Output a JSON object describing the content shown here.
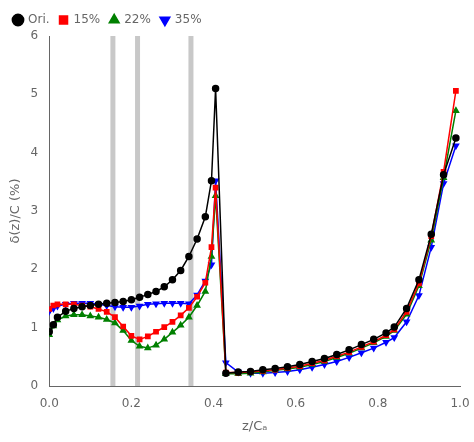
{
  "chart_data": {
    "type": "line",
    "x_label": "z/Cₐ",
    "y_label": "δ(z)/C (%)",
    "x": [
      0.0,
      0.01,
      0.02,
      0.04,
      0.06,
      0.08,
      0.1,
      0.12,
      0.14,
      0.16,
      0.18,
      0.2,
      0.22,
      0.24,
      0.26,
      0.28,
      0.3,
      0.32,
      0.34,
      0.36,
      0.38,
      0.395,
      0.405,
      0.43,
      0.46,
      0.49,
      0.52,
      0.55,
      0.58,
      0.61,
      0.64,
      0.67,
      0.7,
      0.73,
      0.76,
      0.79,
      0.82,
      0.84,
      0.87,
      0.9,
      0.93,
      0.96,
      0.99
    ],
    "series": [
      {
        "name": "Ori.",
        "color": "black",
        "marker": "circle",
        "values": [
          0.93,
          1.05,
          1.18,
          1.28,
          1.33,
          1.36,
          1.38,
          1.4,
          1.42,
          1.43,
          1.45,
          1.48,
          1.52,
          1.57,
          1.62,
          1.7,
          1.82,
          1.98,
          2.22,
          2.52,
          2.9,
          3.52,
          5.1,
          0.22,
          0.24,
          0.25,
          0.28,
          0.3,
          0.33,
          0.37,
          0.42,
          0.47,
          0.54,
          0.62,
          0.71,
          0.8,
          0.91,
          1.01,
          1.33,
          1.82,
          2.6,
          3.62,
          4.25
        ]
      },
      {
        "name": "15%",
        "color": "red",
        "marker": "square",
        "values": [
          1.32,
          1.38,
          1.4,
          1.4,
          1.4,
          1.38,
          1.36,
          1.32,
          1.27,
          1.18,
          1.02,
          0.86,
          0.8,
          0.85,
          0.93,
          1.01,
          1.1,
          1.21,
          1.34,
          1.53,
          1.77,
          2.38,
          3.4,
          0.23,
          0.23,
          0.24,
          0.26,
          0.28,
          0.31,
          0.34,
          0.39,
          0.44,
          0.51,
          0.58,
          0.67,
          0.76,
          0.87,
          0.97,
          1.27,
          1.76,
          2.57,
          3.67,
          5.06
        ]
      },
      {
        "name": "22%",
        "color": "green",
        "marker": "triangle",
        "values": [
          0.88,
          1.03,
          1.13,
          1.2,
          1.22,
          1.22,
          1.2,
          1.18,
          1.14,
          1.08,
          0.95,
          0.78,
          0.68,
          0.65,
          0.7,
          0.8,
          0.92,
          1.04,
          1.18,
          1.38,
          1.62,
          2.22,
          3.26,
          0.21,
          0.21,
          0.22,
          0.24,
          0.27,
          0.29,
          0.32,
          0.37,
          0.42,
          0.49,
          0.56,
          0.65,
          0.74,
          0.85,
          0.95,
          1.23,
          1.72,
          2.5,
          3.57,
          4.72
        ]
      },
      {
        "name": "35%",
        "color": "blue",
        "marker": "triangle_down",
        "values": [
          1.28,
          1.33,
          1.37,
          1.4,
          1.42,
          1.42,
          1.42,
          1.4,
          1.38,
          1.36,
          1.35,
          1.35,
          1.37,
          1.4,
          1.41,
          1.42,
          1.42,
          1.42,
          1.41,
          1.56,
          1.8,
          2.08,
          3.52,
          0.4,
          0.24,
          0.22,
          0.22,
          0.23,
          0.25,
          0.28,
          0.32,
          0.37,
          0.42,
          0.49,
          0.57,
          0.65,
          0.75,
          0.83,
          1.1,
          1.55,
          2.38,
          3.47,
          4.12
        ]
      }
    ],
    "vertical_lines": [
      0.155,
      0.215,
      0.345
    ],
    "xlim": [
      0,
      1.0
    ],
    "ylim": [
      0,
      6.0
    ],
    "xticks": [
      {
        "value": 0,
        "label": "0.0"
      },
      0.2,
      0.4,
      0.6,
      0.8,
      {
        "value": 1.0,
        "label": "1.0"
      }
    ],
    "yticks": [
      0,
      1,
      2,
      3,
      4,
      5,
      6
    ],
    "grid": false,
    "legend": "upper left"
  }
}
